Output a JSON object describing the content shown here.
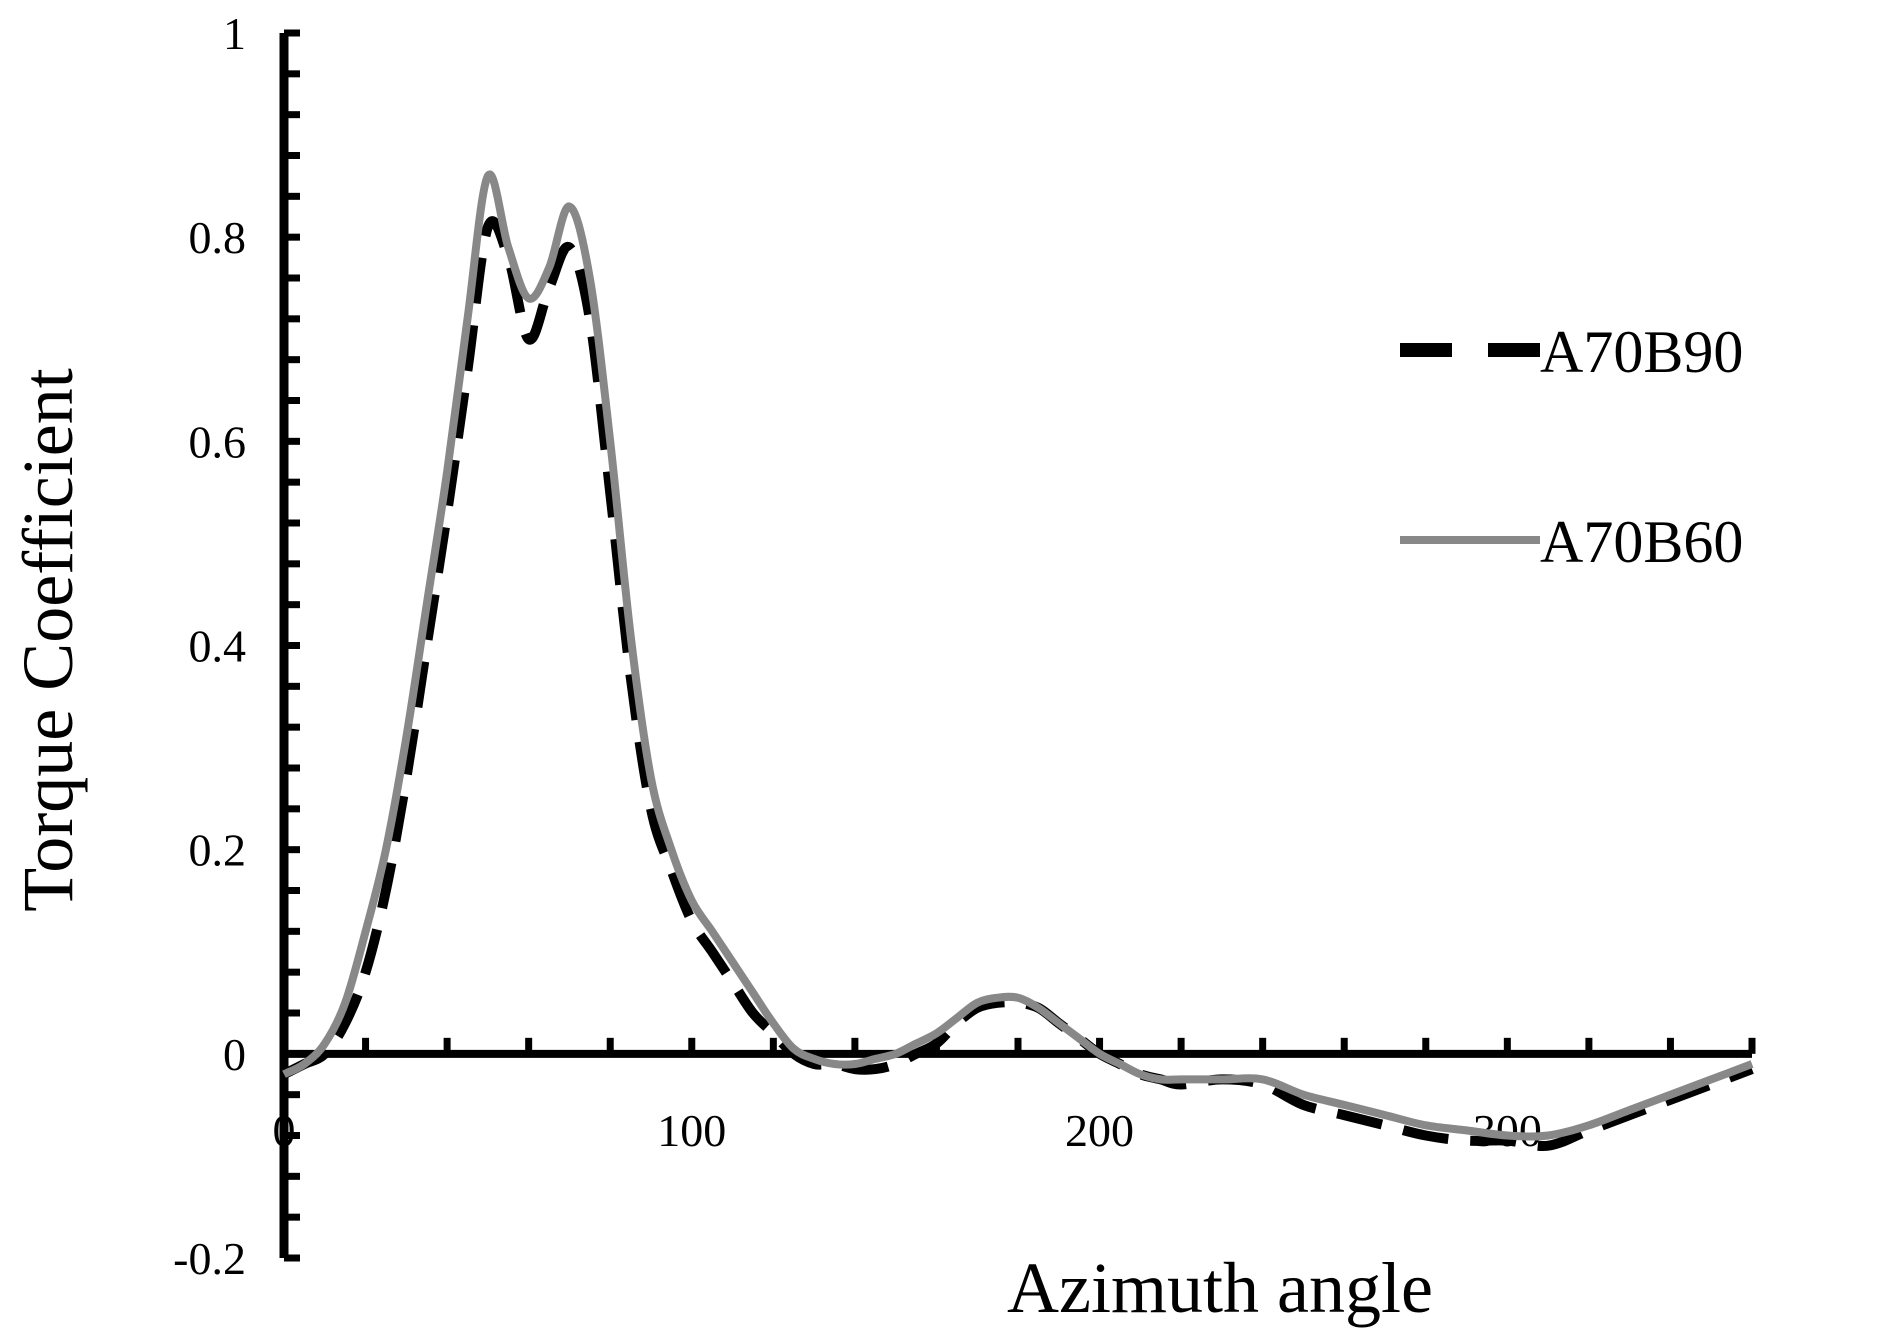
{
  "chart_data": {
    "type": "line",
    "title": "",
    "xlabel": "Azimuth angle",
    "ylabel": "Torque Coefficient",
    "xlim": [
      0,
      360
    ],
    "ylim": [
      -0.2,
      1
    ],
    "x_ticks": [
      0,
      100,
      200,
      300
    ],
    "x_tick_labels": [
      "0",
      "100",
      "200",
      "300"
    ],
    "y_ticks": [
      -0.2,
      0,
      0.2,
      0.4,
      0.6,
      0.8,
      1
    ],
    "y_tick_labels": [
      "-0.2",
      "0",
      "0.2",
      "0.4",
      "0.6",
      "0.8",
      "1"
    ],
    "grid": false,
    "legend_position": "right",
    "series": [
      {
        "name": "A70B90",
        "color": "#000000",
        "style": "dashed",
        "x": [
          0,
          5,
          10,
          15,
          20,
          25,
          30,
          35,
          40,
          45,
          50,
          55,
          60,
          65,
          70,
          75,
          80,
          85,
          90,
          95,
          100,
          105,
          110,
          115,
          120,
          125,
          130,
          135,
          140,
          145,
          150,
          155,
          160,
          165,
          170,
          175,
          180,
          185,
          190,
          195,
          200,
          205,
          210,
          215,
          220,
          230,
          240,
          250,
          260,
          270,
          280,
          290,
          300,
          310,
          320,
          330,
          340,
          350,
          360
        ],
        "values": [
          -0.02,
          -0.01,
          0.0,
          0.03,
          0.08,
          0.16,
          0.27,
          0.4,
          0.53,
          0.67,
          0.81,
          0.78,
          0.7,
          0.75,
          0.79,
          0.72,
          0.55,
          0.37,
          0.24,
          0.18,
          0.13,
          0.1,
          0.07,
          0.04,
          0.02,
          0.0,
          -0.01,
          -0.01,
          -0.015,
          -0.015,
          -0.01,
          0.0,
          0.01,
          0.03,
          0.045,
          0.05,
          0.05,
          0.045,
          0.03,
          0.015,
          0.0,
          -0.01,
          -0.02,
          -0.025,
          -0.03,
          -0.025,
          -0.03,
          -0.05,
          -0.06,
          -0.07,
          -0.08,
          -0.085,
          -0.085,
          -0.09,
          -0.075,
          -0.06,
          -0.045,
          -0.03,
          -0.015
        ]
      },
      {
        "name": "A70B60",
        "color": "#888888",
        "style": "solid",
        "x": [
          0,
          5,
          10,
          15,
          20,
          25,
          30,
          35,
          40,
          45,
          50,
          55,
          60,
          65,
          70,
          75,
          80,
          85,
          90,
          95,
          100,
          105,
          110,
          115,
          120,
          125,
          130,
          135,
          140,
          145,
          150,
          155,
          160,
          165,
          170,
          175,
          180,
          185,
          190,
          195,
          200,
          205,
          210,
          215,
          220,
          230,
          240,
          250,
          260,
          270,
          280,
          290,
          300,
          310,
          320,
          330,
          340,
          350,
          360
        ],
        "values": [
          -0.02,
          -0.01,
          0.01,
          0.05,
          0.12,
          0.2,
          0.31,
          0.44,
          0.57,
          0.72,
          0.86,
          0.79,
          0.74,
          0.77,
          0.83,
          0.76,
          0.6,
          0.41,
          0.27,
          0.2,
          0.15,
          0.12,
          0.09,
          0.06,
          0.03,
          0.005,
          -0.005,
          -0.01,
          -0.01,
          -0.005,
          0.0,
          0.01,
          0.02,
          0.035,
          0.05,
          0.055,
          0.055,
          0.045,
          0.03,
          0.015,
          0.0,
          -0.01,
          -0.02,
          -0.025,
          -0.025,
          -0.025,
          -0.025,
          -0.04,
          -0.05,
          -0.06,
          -0.07,
          -0.075,
          -0.08,
          -0.08,
          -0.07,
          -0.055,
          -0.04,
          -0.025,
          -0.01
        ]
      }
    ]
  }
}
